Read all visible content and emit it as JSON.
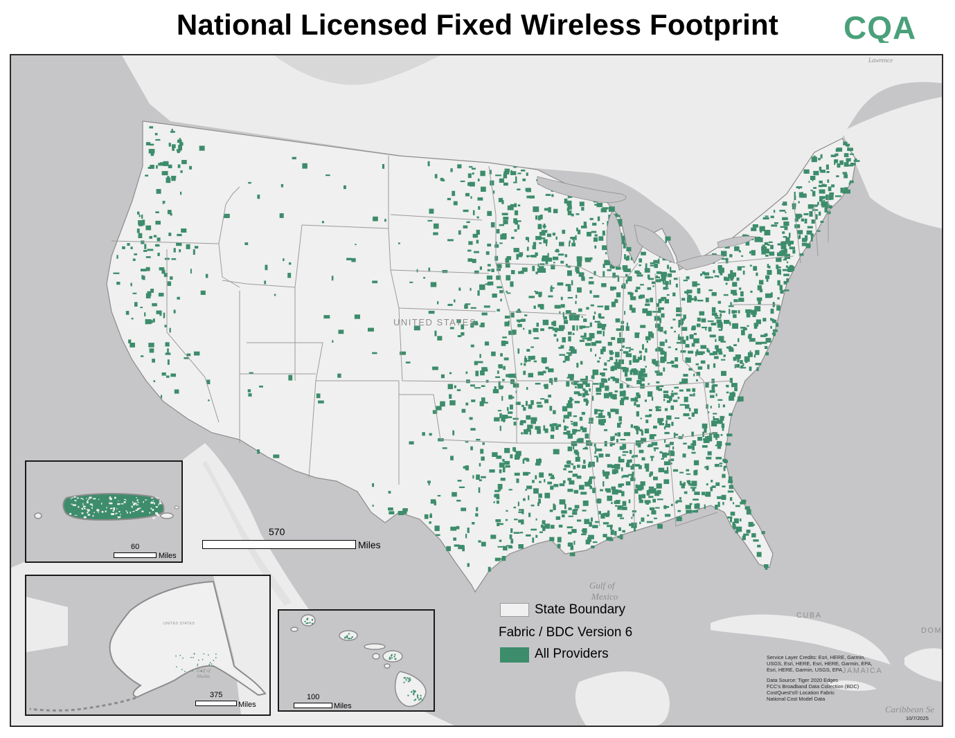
{
  "title": "National Licensed Fixed Wireless Footprint",
  "logo_text": "CQA",
  "colors": {
    "coverage": "#3d8c6b",
    "land": "#f0f0f0",
    "water": "#c6c6c8",
    "state_boundary": "#9a9a9a",
    "logo": "#4aa07a"
  },
  "main_scale": {
    "value": "570",
    "unit": "Miles"
  },
  "insets": {
    "puerto_rico": {
      "scale_value": "60",
      "scale_unit": "Miles"
    },
    "alaska": {
      "scale_value": "375",
      "scale_unit": "Miles",
      "country_label": "UNITED STATES",
      "water_label": "Gulf of Alaska"
    },
    "hawaii": {
      "scale_value": "100",
      "scale_unit": "Miles"
    }
  },
  "map_labels": {
    "country": "UNITED STATES",
    "gulf_line1": "Gulf of",
    "gulf_line2": "Mexico",
    "cuba": "CUBA",
    "jamaica": "JAMAICA",
    "dominican": "DOMI",
    "caribbean": "Caribbean Se",
    "st_lawrence": "Lawrence"
  },
  "legend": {
    "state_boundary": "State Boundary",
    "version": "Fabric / BDC Version 6",
    "providers": "All Providers"
  },
  "credits": [
    "Service Layer Credits: Esri, HERE, Garmin,",
    "USGS, Esri, HERE, Esri, HERE, Garmin, EPA,",
    "Esri, HERE, Garmin, USGS, EPA",
    "",
    "Data Source: Tiger 2020 Edges",
    "FCC's Broadband Data Collection (BDC)",
    "CostQuest's® Location Fabric",
    "National Cost Model Data"
  ],
  "date": "10/7/2025"
}
